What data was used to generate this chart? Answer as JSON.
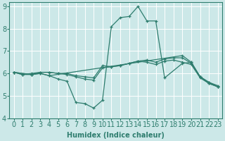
{
  "xlabel": "Humidex (Indice chaleur)",
  "xlim": [
    -0.5,
    23.5
  ],
  "ylim": [
    4,
    9.2
  ],
  "yticks": [
    4,
    5,
    6,
    7,
    8,
    9
  ],
  "xticks": [
    0,
    1,
    2,
    3,
    4,
    5,
    6,
    7,
    8,
    9,
    10,
    11,
    12,
    13,
    14,
    15,
    16,
    17,
    18,
    19,
    20,
    21,
    22,
    23
  ],
  "bg_color": "#cce8e8",
  "grid_color": "#b0d8d8",
  "line_color": "#2e7d6e",
  "lines": [
    {
      "x": [
        0,
        2,
        3,
        4,
        5,
        6,
        7,
        8,
        9,
        10,
        11,
        12,
        13,
        14,
        15,
        16,
        17,
        19,
        20,
        21,
        22,
        23
      ],
      "y": [
        6.05,
        5.95,
        6.0,
        5.9,
        5.75,
        5.65,
        4.7,
        4.65,
        4.45,
        4.8,
        8.1,
        8.5,
        8.55,
        9.0,
        8.35,
        8.35,
        5.8,
        6.45,
        6.5,
        5.85,
        5.55,
        5.4
      ]
    },
    {
      "x": [
        0,
        2,
        3,
        4,
        19,
        20,
        21,
        22,
        23
      ],
      "y": [
        6.05,
        5.95,
        6.0,
        5.9,
        6.8,
        6.5,
        5.85,
        5.6,
        5.4
      ]
    },
    {
      "x": [
        0,
        1,
        2,
        3,
        4,
        5,
        6,
        7,
        8,
        9,
        10,
        11,
        12,
        13,
        14,
        15,
        16,
        17,
        18,
        19,
        20,
        21,
        22,
        23
      ],
      "y": [
        6.05,
        5.95,
        5.95,
        6.05,
        6.05,
        6.0,
        6.0,
        5.9,
        5.85,
        5.8,
        6.35,
        6.3,
        6.35,
        6.45,
        6.55,
        6.5,
        6.4,
        6.55,
        6.6,
        6.5,
        6.4,
        5.8,
        5.55,
        5.4
      ]
    },
    {
      "x": [
        0,
        1,
        2,
        3,
        4,
        5,
        6,
        7,
        8,
        9,
        10,
        11,
        12,
        13,
        14,
        15,
        16,
        17,
        18,
        19,
        20,
        21,
        22,
        23
      ],
      "y": [
        6.05,
        5.95,
        6.0,
        6.05,
        6.05,
        6.0,
        5.95,
        5.85,
        5.75,
        5.7,
        6.25,
        6.3,
        6.35,
        6.45,
        6.55,
        6.6,
        6.5,
        6.65,
        6.7,
        6.7,
        6.45,
        5.85,
        5.6,
        5.45
      ]
    }
  ],
  "font_size": 7,
  "xlabel_fontsize": 7,
  "marker": "+",
  "markersize": 3,
  "linewidth": 0.9
}
